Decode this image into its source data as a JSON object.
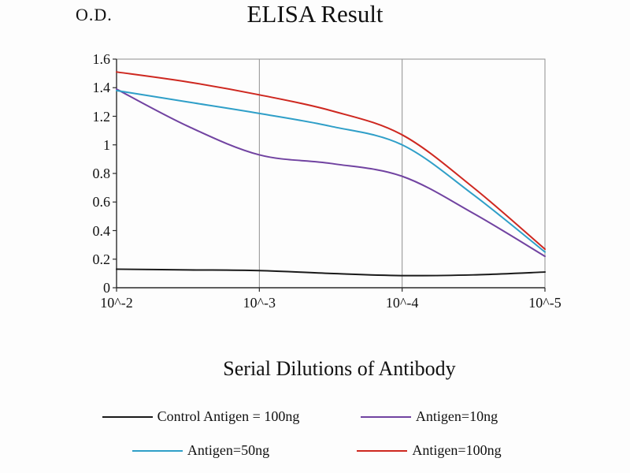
{
  "chart_data": {
    "type": "line",
    "title": "ELISA Result",
    "ylabel": "O.D.",
    "xlabel": "Serial Dilutions of Antibody",
    "x_log": [
      -2,
      -2.5,
      -3,
      -3.5,
      -4,
      -4.5,
      -5
    ],
    "xtick_log": [
      -2,
      -3,
      -4,
      -5
    ],
    "xtick_labels": [
      "10^-2",
      "10^-3",
      "10^-4",
      "10^-5"
    ],
    "ylim": [
      0,
      1.6
    ],
    "ytick_labels": [
      "0",
      "0.2",
      "0.4",
      "0.6",
      "0.8",
      "1",
      "1.2",
      "1.4",
      "1.6"
    ],
    "grid": "vertical-only",
    "legend_position": "bottom",
    "axis_color": "#2b2b2b",
    "grid_color": "#8f8f8f",
    "series": [
      {
        "name": "Control Antigen = 100ng",
        "color": "#1a1a1a",
        "values": [
          0.13,
          0.125,
          0.12,
          0.1,
          0.085,
          0.09,
          0.11
        ]
      },
      {
        "name": "Antigen=10ng",
        "color": "#7143a1",
        "values": [
          1.39,
          1.13,
          0.93,
          0.87,
          0.78,
          0.52,
          0.22
        ]
      },
      {
        "name": "Antigen=50ng",
        "color": "#2f9fc8",
        "values": [
          1.38,
          1.3,
          1.22,
          1.13,
          1.0,
          0.65,
          0.25
        ]
      },
      {
        "name": "Antigen=100ng",
        "color": "#ce2820",
        "values": [
          1.51,
          1.44,
          1.35,
          1.24,
          1.07,
          0.7,
          0.27
        ]
      }
    ]
  }
}
